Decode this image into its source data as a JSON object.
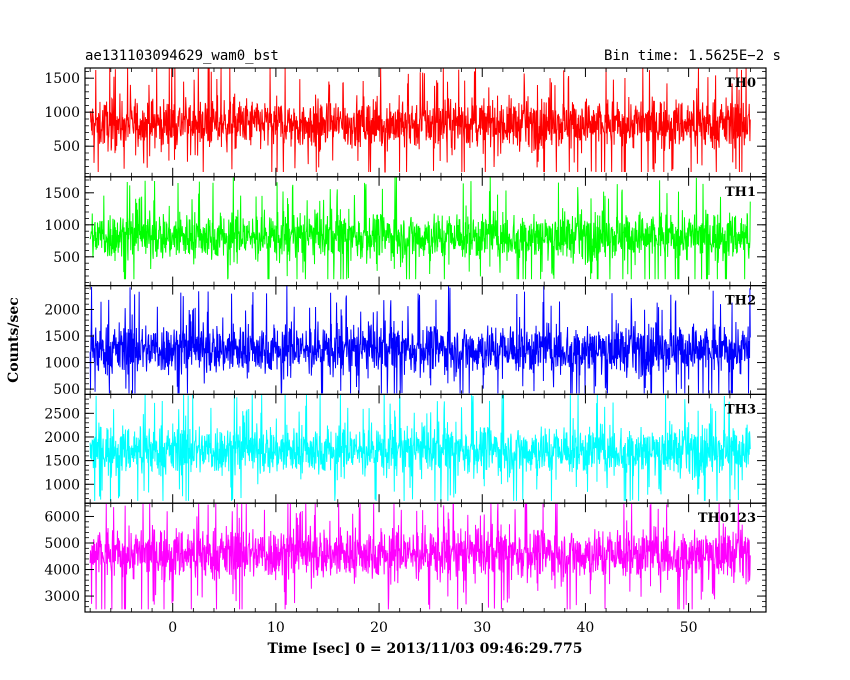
{
  "header": {
    "left_title": "ae131103094629_wam0_bst",
    "right_title": "Bin time: 1.5625E−2 s"
  },
  "chart_data": {
    "type": "line",
    "title": "ae131103094629_wam0_bst",
    "bin_time": "Bin time: 1.5625E−2 s",
    "xlabel": "Time [sec] 0 = 2013/11/03 09:46:29.775",
    "ylabel": "Counts/sec",
    "xlim": [
      -8.5,
      57.5
    ],
    "xdata_range": [
      -8,
      56
    ],
    "xticks": [
      0,
      10,
      20,
      30,
      40,
      50
    ],
    "panels": [
      {
        "name": "TH0",
        "color": "#ff0000",
        "ylim": [
          50,
          1650
        ],
        "yticks": [
          500,
          1000,
          1500
        ],
        "mean": 830,
        "spread": 260,
        "min": 120,
        "max": 1650
      },
      {
        "name": "TH1",
        "color": "#00ff00",
        "ylim": [
          50,
          1750
        ],
        "yticks": [
          500,
          1000,
          1500
        ],
        "mean": 820,
        "spread": 270,
        "min": 150,
        "max": 1750
      },
      {
        "name": "TH2",
        "color": "#0000ff",
        "ylim": [
          400,
          2450
        ],
        "yticks": [
          500,
          1000,
          1500,
          2000
        ],
        "mean": 1250,
        "spread": 340,
        "min": 420,
        "max": 2450
      },
      {
        "name": "TH3",
        "color": "#00ffff",
        "ylim": [
          600,
          2900
        ],
        "yticks": [
          1000,
          1500,
          2000,
          2500
        ],
        "mean": 1720,
        "spread": 380,
        "min": 650,
        "max": 2900
      },
      {
        "name": "TH0123",
        "color": "#ff00ff",
        "ylim": [
          2400,
          6500
        ],
        "yticks": [
          3000,
          4000,
          5000,
          6000
        ],
        "mean": 4600,
        "spread": 700,
        "min": 2500,
        "max": 6500
      }
    ]
  }
}
